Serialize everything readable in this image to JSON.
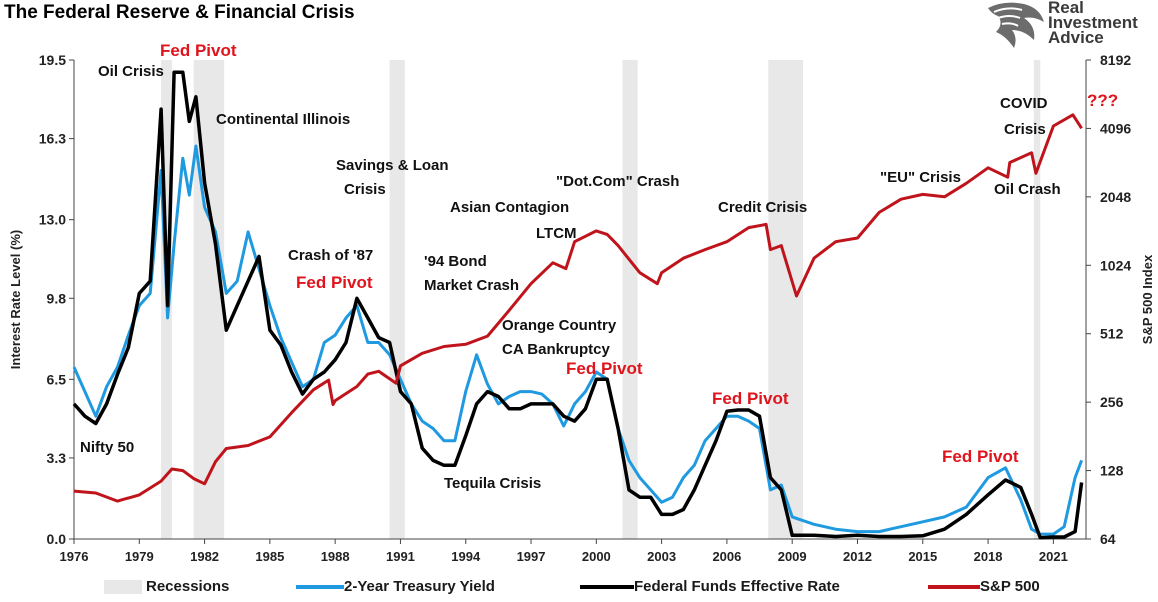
{
  "title": "The Federal Reserve & Financial Crisis",
  "logo": {
    "line1": "Real",
    "line2": "Investment",
    "line3": "Advice"
  },
  "colors": {
    "treasury": "#1f9ae0",
    "fedfunds": "#000000",
    "sp500": "#c0141c",
    "recession": "#e8e8e8",
    "pivot": "#e0141c"
  },
  "legend": {
    "recessions": "Recessions",
    "treasury": "2-Year Treasury Yield",
    "fedfunds": "Federal Funds Effective Rate",
    "sp500": "S&P 500"
  },
  "chart_data": {
    "type": "line",
    "title": "The Federal Reserve & Financial Crisis",
    "ylabel": "Interest Rate Level (%)",
    "y2label": "S&P 500 Index",
    "xlim": [
      1976,
      2022.5
    ],
    "ylim": [
      0,
      19.5
    ],
    "y2lim": [
      64,
      8192
    ],
    "y2scale": "log2",
    "xticks": [
      "1976",
      "1979",
      "1982",
      "1985",
      "1988",
      "1991",
      "1994",
      "1997",
      "2000",
      "2003",
      "2006",
      "2009",
      "2012",
      "2015",
      "2018",
      "2021"
    ],
    "yticks": [
      "0.0",
      "3.3",
      "6.5",
      "9.8",
      "13.0",
      "16.3",
      "19.5"
    ],
    "y2ticks": [
      "64",
      "128",
      "256",
      "512",
      "1024",
      "2048",
      "4096",
      "8192"
    ],
    "recessions": [
      [
        1980.0,
        1980.5
      ],
      [
        1981.5,
        1982.9
      ],
      [
        1990.5,
        1991.2
      ],
      [
        2001.2,
        2001.9
      ],
      [
        2007.9,
        2009.5
      ],
      [
        2020.1,
        2020.4
      ]
    ],
    "series": [
      {
        "name": "2-Year Treasury Yield",
        "axis": "left",
        "x": [
          1976,
          1976.5,
          1977,
          1977.5,
          1978,
          1978.5,
          1979,
          1979.5,
          1980,
          1980.3,
          1980.6,
          1981,
          1981.3,
          1981.6,
          1982,
          1982.5,
          1983,
          1983.5,
          1984,
          1984.5,
          1985,
          1985.5,
          1986,
          1986.5,
          1987,
          1987.5,
          1988,
          1988.5,
          1989,
          1989.5,
          1990,
          1990.5,
          1991,
          1991.5,
          1992,
          1992.5,
          1993,
          1993.5,
          1994,
          1994.5,
          1995,
          1995.5,
          1996,
          1996.5,
          1997,
          1997.5,
          1998,
          1998.5,
          1999,
          1999.5,
          2000,
          2000.5,
          2001,
          2001.5,
          2002,
          2002.5,
          2003,
          2003.5,
          2004,
          2004.5,
          2005,
          2005.5,
          2006,
          2006.5,
          2007,
          2007.5,
          2008,
          2008.5,
          2009,
          2010,
          2011,
          2012,
          2013,
          2014,
          2015,
          2016,
          2017,
          2018,
          2018.8,
          2019.5,
          2020,
          2020.4,
          2021,
          2021.5,
          2022,
          2022.3
        ],
        "y": [
          7.0,
          6.0,
          5.0,
          6.2,
          7.0,
          8.3,
          9.5,
          10.0,
          15.0,
          9.0,
          12.0,
          15.5,
          14.0,
          16.0,
          13.5,
          12.5,
          10.0,
          10.5,
          12.5,
          11.0,
          9.5,
          8.2,
          7.2,
          6.2,
          6.5,
          8.0,
          8.3,
          9.0,
          9.5,
          8.0,
          8.0,
          7.5,
          6.5,
          5.5,
          4.8,
          4.5,
          4.0,
          4.0,
          6.0,
          7.5,
          6.3,
          5.5,
          5.8,
          6.0,
          6.0,
          5.9,
          5.5,
          4.6,
          5.5,
          6.0,
          6.8,
          6.5,
          4.5,
          3.2,
          2.5,
          2.0,
          1.5,
          1.7,
          2.5,
          3.0,
          4.0,
          4.5,
          5.0,
          5.0,
          4.8,
          4.5,
          2.0,
          2.2,
          0.9,
          0.6,
          0.4,
          0.3,
          0.3,
          0.5,
          0.7,
          0.9,
          1.3,
          2.5,
          2.9,
          1.6,
          0.4,
          0.2,
          0.2,
          0.5,
          2.5,
          3.2
        ]
      },
      {
        "name": "Federal Funds Effective Rate",
        "axis": "left",
        "x": [
          1976,
          1976.5,
          1977,
          1977.5,
          1978,
          1978.5,
          1979,
          1979.5,
          1980,
          1980.3,
          1980.6,
          1981,
          1981.3,
          1981.6,
          1982,
          1982.5,
          1983,
          1983.5,
          1984,
          1984.5,
          1985,
          1985.5,
          1986,
          1986.5,
          1987,
          1987.5,
          1988,
          1988.5,
          1989,
          1989.5,
          1990,
          1990.5,
          1991,
          1991.5,
          1992,
          1992.5,
          1993,
          1993.5,
          1994,
          1994.5,
          1995,
          1995.5,
          1996,
          1996.5,
          1997,
          1997.5,
          1998,
          1998.5,
          1999,
          1999.5,
          2000,
          2000.5,
          2001,
          2001.5,
          2002,
          2002.5,
          2003,
          2003.5,
          2004,
          2004.5,
          2005,
          2005.5,
          2006,
          2006.5,
          2007,
          2007.5,
          2008,
          2008.5,
          2009,
          2010,
          2011,
          2012,
          2013,
          2014,
          2015,
          2016,
          2017,
          2018,
          2018.8,
          2019.5,
          2020,
          2020.4,
          2021,
          2021.5,
          2022,
          2022.3
        ],
        "y": [
          5.5,
          5.0,
          4.7,
          5.5,
          6.7,
          7.8,
          10.0,
          10.5,
          17.5,
          9.5,
          19.0,
          19.0,
          17.0,
          18.0,
          14.5,
          12.0,
          8.5,
          9.5,
          10.5,
          11.5,
          8.5,
          7.9,
          6.8,
          5.9,
          6.5,
          6.8,
          7.3,
          8.0,
          9.8,
          9.0,
          8.2,
          8.0,
          6.0,
          5.5,
          3.7,
          3.2,
          3.0,
          3.0,
          4.2,
          5.5,
          6.0,
          5.8,
          5.3,
          5.3,
          5.5,
          5.5,
          5.5,
          5.0,
          4.8,
          5.3,
          6.5,
          6.5,
          4.5,
          2.0,
          1.7,
          1.7,
          1.0,
          1.0,
          1.2,
          2.0,
          3.0,
          4.0,
          5.2,
          5.25,
          5.25,
          5.0,
          2.5,
          2.0,
          0.15,
          0.15,
          0.1,
          0.15,
          0.1,
          0.1,
          0.13,
          0.4,
          1.0,
          1.8,
          2.4,
          2.1,
          1.0,
          0.05,
          0.08,
          0.08,
          0.3,
          2.3
        ]
      },
      {
        "name": "S&P 500",
        "axis": "right",
        "x": [
          1976,
          1977,
          1978,
          1979,
          1980,
          1980.5,
          1981,
          1981.5,
          1982,
          1982.5,
          1983,
          1984,
          1985,
          1986,
          1987,
          1987.7,
          1987.9,
          1988,
          1989,
          1989.5,
          1990,
          1990.8,
          1991,
          1992,
          1993,
          1994,
          1995,
          1996,
          1997,
          1998,
          1998.6,
          1999,
          2000,
          2000.5,
          2001,
          2002,
          2002.8,
          2003,
          2004,
          2005,
          2006,
          2007,
          2007.8,
          2008,
          2008.5,
          2009.2,
          2010,
          2011,
          2012,
          2013,
          2014,
          2015,
          2016,
          2017,
          2018,
          2018.9,
          2019,
          2020,
          2020.2,
          2021,
          2021.9,
          2022.3
        ],
        "y": [
          104,
          102,
          94,
          100,
          115,
          130,
          128,
          118,
          112,
          140,
          160,
          165,
          180,
          230,
          290,
          320,
          250,
          260,
          300,
          340,
          350,
          310,
          370,
          420,
          450,
          460,
          500,
          650,
          850,
          1050,
          990,
          1300,
          1450,
          1400,
          1250,
          950,
          850,
          950,
          1100,
          1200,
          1300,
          1500,
          1550,
          1200,
          1250,
          750,
          1100,
          1300,
          1350,
          1750,
          2000,
          2100,
          2050,
          2350,
          2750,
          2500,
          2900,
          3200,
          2600,
          4200,
          4700,
          4100
        ]
      }
    ],
    "annotations": {
      "oil_crisis": "Oil Crisis",
      "fed_pivot_1980": "Fed Pivot",
      "continental": "Continental Illinois",
      "savings_1": "Savings & Loan",
      "savings_2": "Crisis",
      "crash87": "Crash of '87",
      "fed_pivot_1987": "Fed Pivot",
      "bond_1": "'94 Bond",
      "bond_2": "Market Crash",
      "asian": "Asian Contagion",
      "ltcm": "LTCM",
      "dotcom": "\"Dot.Com\" Crash",
      "orange_1": "Orange Country",
      "orange_2": "CA Bankruptcy",
      "fed_pivot_2000": "Fed Pivot",
      "credit": "Credit Crisis",
      "fed_pivot_2006": "Fed Pivot",
      "eu": "\"EU\" Crisis",
      "oil_crash": "Oil Crash",
      "covid_1": "COVID",
      "covid_2": "Crisis",
      "question": "???",
      "fed_pivot_2019": "Fed Pivot",
      "nifty": "Nifty 50",
      "tequila": "Tequila Crisis"
    }
  }
}
